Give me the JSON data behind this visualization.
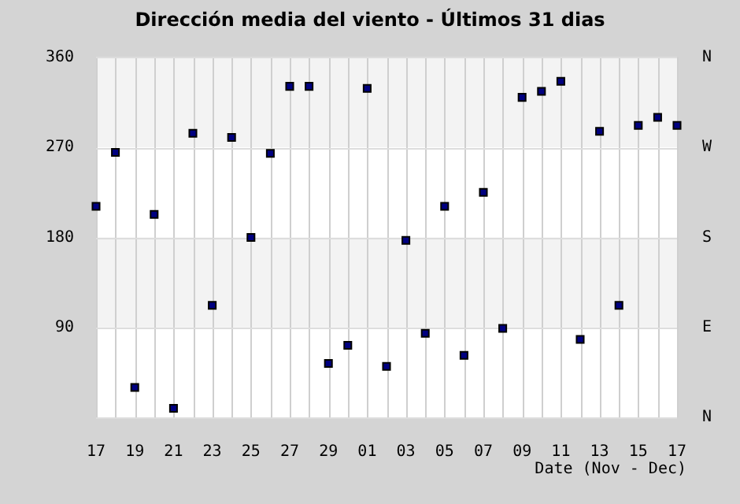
{
  "chart_data": {
    "type": "scatter",
    "title": "Dirección media del viento - Últimos 31 dias",
    "xlabel": "Date (Nov - Dec)",
    "categories": [
      "17",
      null,
      "19",
      null,
      "21",
      null,
      "23",
      null,
      "25",
      null,
      "27",
      null,
      "29",
      null,
      "01",
      null,
      "03",
      null,
      "05",
      null,
      "07",
      null,
      "09",
      null,
      "11",
      null,
      "13",
      null,
      "15",
      null,
      "17"
    ],
    "series": [
      {
        "color": "#000080",
        "values": [
          211,
          265,
          30,
          203,
          9,
          284,
          112,
          280,
          180,
          264,
          331,
          331,
          54,
          72,
          329,
          51,
          177,
          84,
          211,
          62,
          225,
          89,
          320,
          326,
          336,
          78,
          286,
          112,
          292,
          300,
          292
        ]
      }
    ],
    "ylim": [
      0,
      360
    ],
    "yticks": [
      {
        "value": 0,
        "label": null
      },
      90,
      180,
      270,
      360
    ],
    "y2_categories": [
      "N",
      "W",
      "S",
      "E",
      "N"
    ],
    "bands": [
      {
        "axis": "y",
        "from": 90,
        "to": 180,
        "color": "#f3f3f3"
      },
      {
        "axis": "y",
        "from": 270,
        "to": 360,
        "color": "#f3f3f3"
      }
    ],
    "grid": true,
    "legend": false,
    "marker": "square"
  }
}
